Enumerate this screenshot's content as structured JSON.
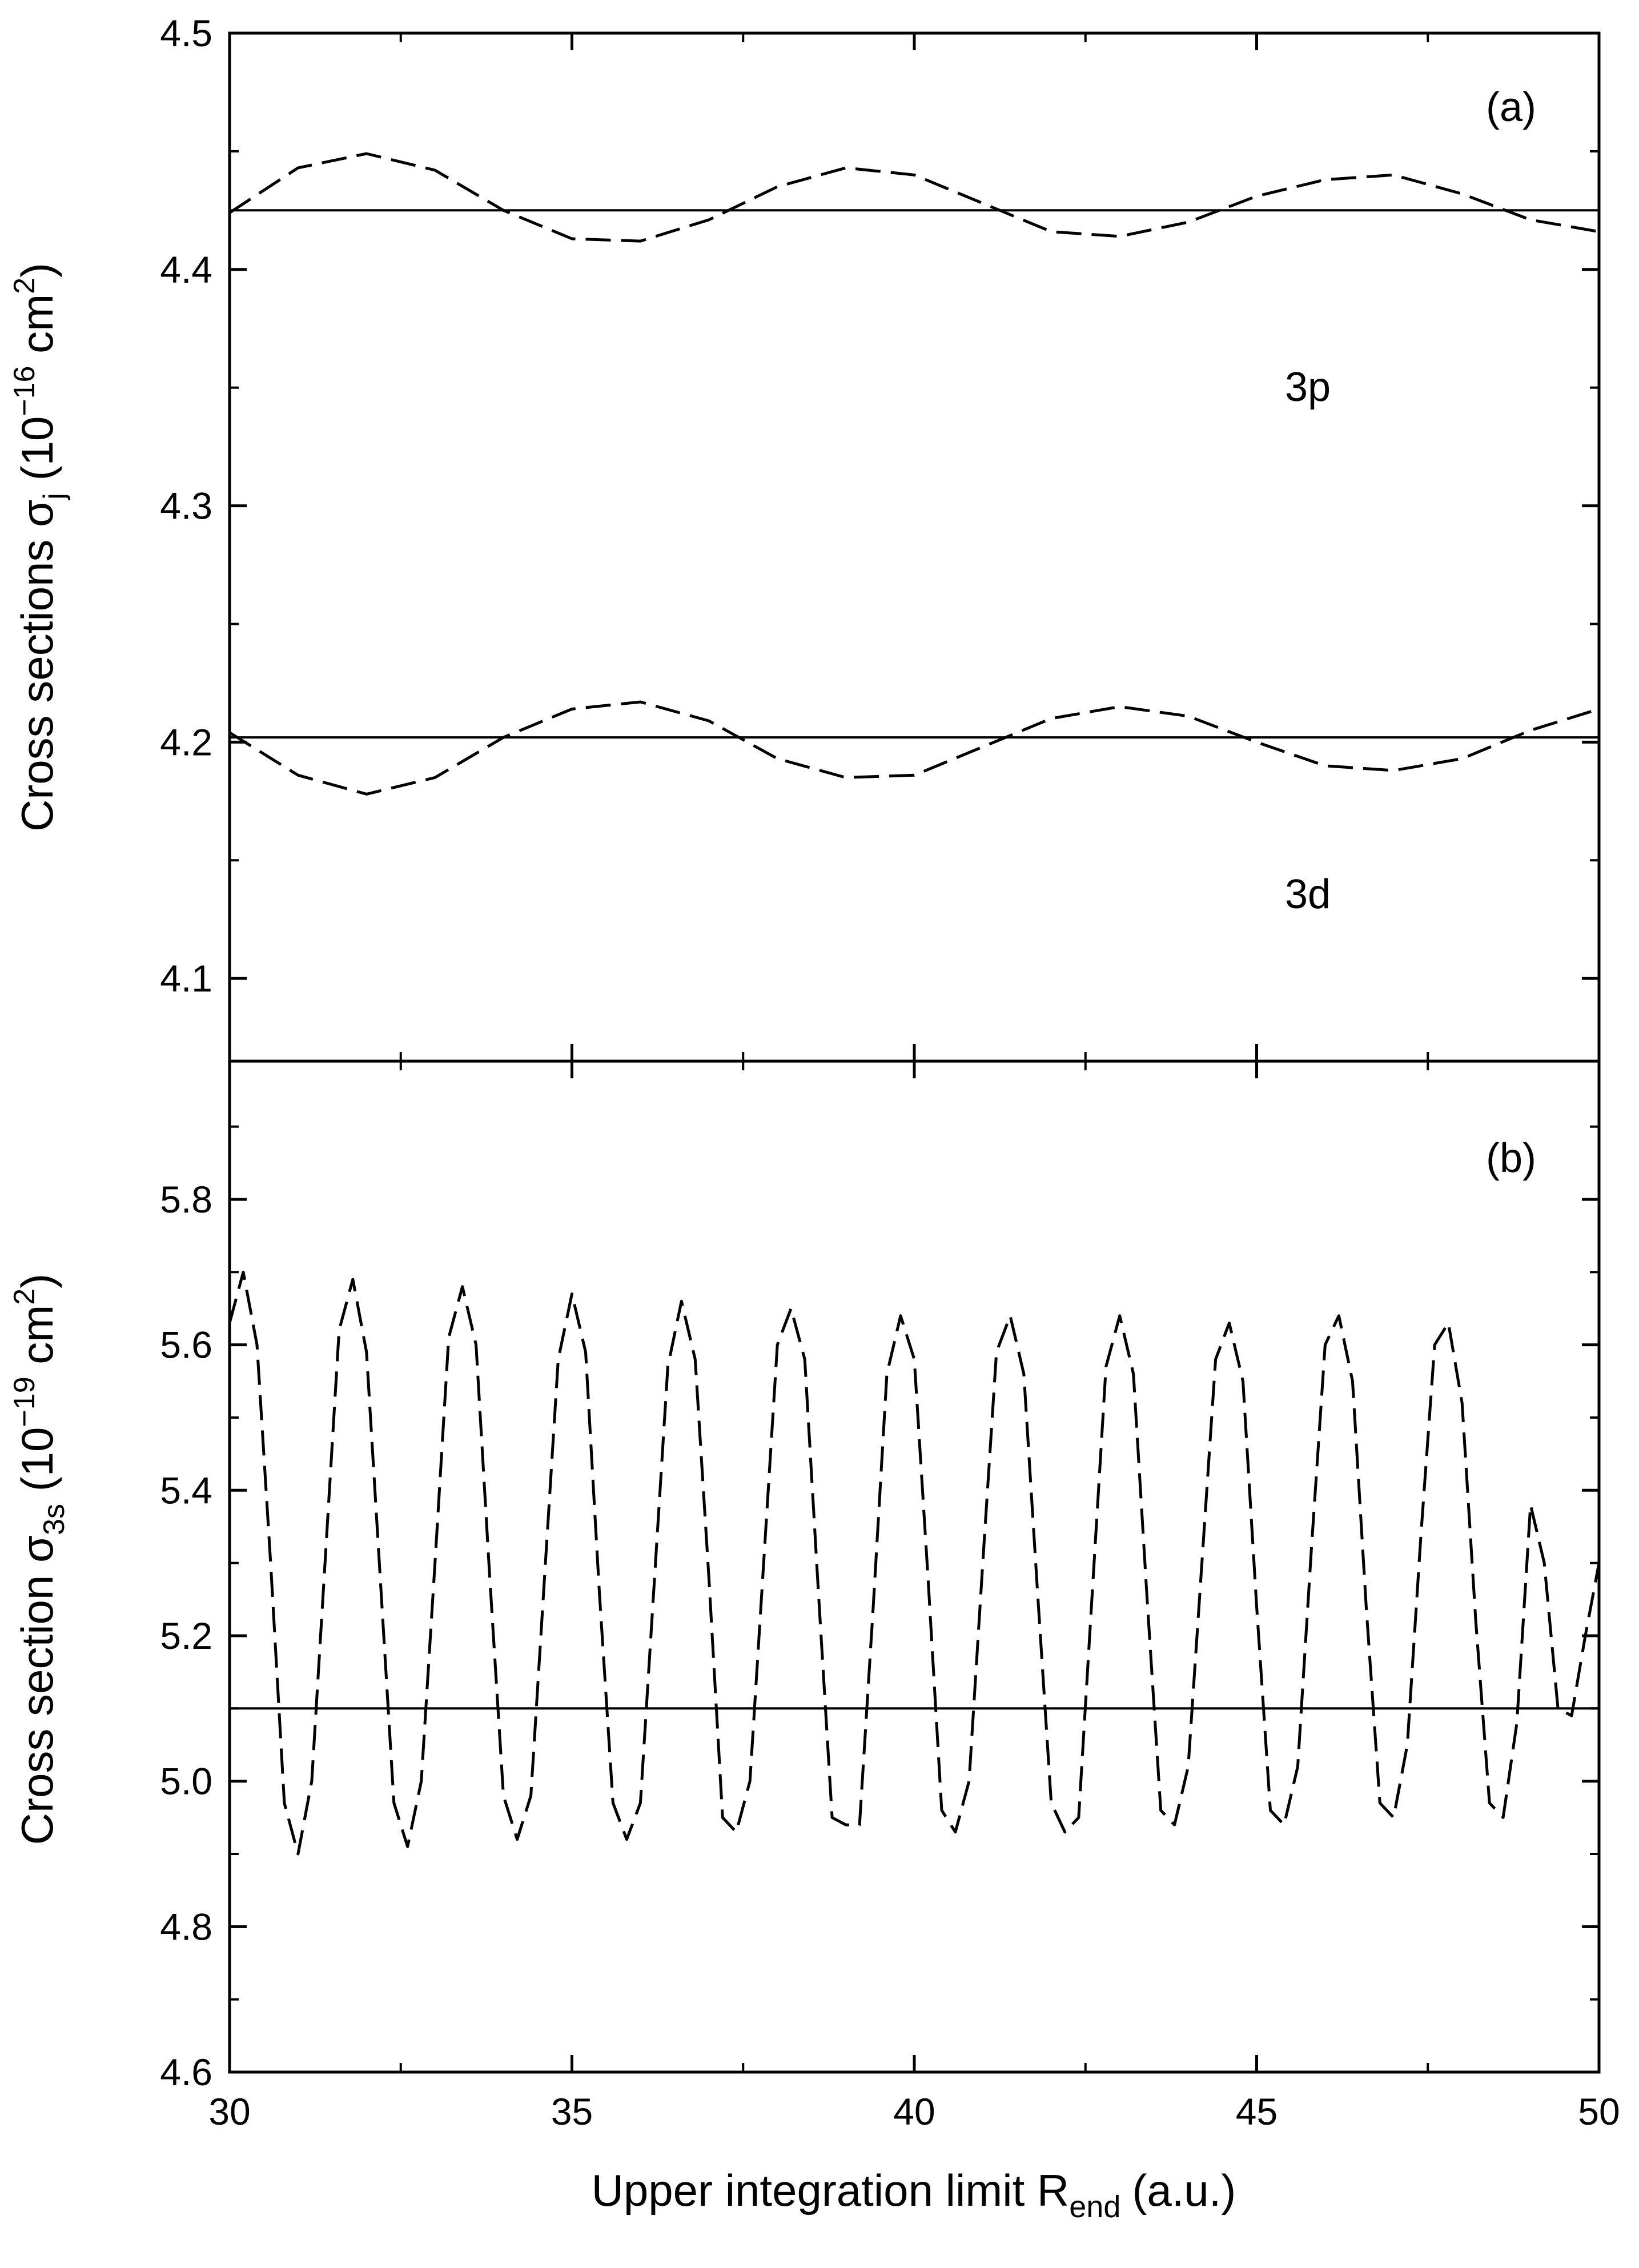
{
  "figure": {
    "xlabel": "Upper integration limit R",
    "xlabel_sub": "end",
    "xlabel_units": "(a.u.)"
  },
  "chart_data": [
    {
      "type": "line",
      "panel": "(a)",
      "ylabel": {
        "base": "Cross sections σ",
        "sub": "j",
        "units_open": " (10",
        "exp": "−16",
        "units_mid": " cm",
        "exp2": "2",
        "units_close": ")"
      },
      "xlim": [
        30,
        50
      ],
      "ylim": [
        4.065,
        4.5
      ],
      "xticks": [
        30,
        35,
        40,
        45,
        50
      ],
      "yticks": [
        4.1,
        4.2,
        4.3,
        4.4,
        4.5
      ],
      "ytick_labels": [
        "4.1",
        "4.2",
        "4.3",
        "4.4",
        "4.5"
      ],
      "labels": [
        "3p",
        "3d"
      ],
      "series": [
        {
          "style": "solid",
          "x": [
            30,
            50
          ],
          "y": [
            4.425,
            4.425
          ]
        },
        {
          "style": "dashed",
          "x": [
            30,
            31,
            32,
            33,
            34,
            35,
            36,
            37,
            38,
            39,
            40,
            41,
            42,
            43,
            44,
            45,
            46,
            47,
            48,
            49,
            50
          ],
          "y": [
            4.424,
            4.443,
            4.449,
            4.442,
            4.425,
            4.413,
            4.412,
            4.421,
            4.435,
            4.443,
            4.44,
            4.428,
            4.416,
            4.414,
            4.42,
            4.431,
            4.438,
            4.44,
            4.432,
            4.421,
            4.416
          ]
        },
        {
          "style": "solid",
          "x": [
            30,
            50
          ],
          "y": [
            4.202,
            4.202
          ]
        },
        {
          "style": "dashed",
          "x": [
            30,
            31,
            32,
            33,
            34,
            35,
            36,
            37,
            38,
            39,
            40,
            41,
            42,
            43,
            44,
            45,
            46,
            47,
            48,
            49,
            50
          ],
          "y": [
            4.204,
            4.186,
            4.178,
            4.185,
            4.202,
            4.214,
            4.217,
            4.209,
            4.193,
            4.185,
            4.186,
            4.198,
            4.21,
            4.215,
            4.211,
            4.2,
            4.19,
            4.188,
            4.193,
            4.205,
            4.214
          ]
        }
      ]
    },
    {
      "type": "line",
      "panel": "(b)",
      "ylabel": {
        "base": "Cross section σ",
        "sub": "3s",
        "units_open": " (10",
        "exp": "−19",
        "units_mid": " cm",
        "exp2": "2",
        "units_close": ")"
      },
      "xlim": [
        30,
        50
      ],
      "ylim": [
        4.6,
        5.99
      ],
      "xticks": [
        30,
        35,
        40,
        45,
        50
      ],
      "xtick_labels": [
        "30",
        "35",
        "40",
        "45",
        "50"
      ],
      "yticks": [
        4.6,
        4.8,
        5.0,
        5.2,
        5.4,
        5.6,
        5.8
      ],
      "ytick_labels": [
        "4.6",
        "4.8",
        "5.0",
        "5.2",
        "5.4",
        "5.6",
        "5.8"
      ],
      "series": [
        {
          "style": "solid",
          "x": [
            30,
            50
          ],
          "y": [
            5.1,
            5.1
          ]
        },
        {
          "style": "dashed",
          "x": [
            30,
            30.2,
            30.4,
            30.6,
            30.8,
            31.0,
            31.2,
            31.4,
            31.6,
            31.8,
            32.0,
            32.2,
            32.4,
            32.6,
            32.8,
            33.0,
            33.2,
            33.4,
            33.6,
            33.8,
            34.0,
            34.2,
            34.4,
            34.6,
            34.8,
            35.0,
            35.2,
            35.4,
            35.6,
            35.8,
            36.0,
            36.2,
            36.4,
            36.6,
            36.8,
            37.0,
            37.2,
            37.4,
            37.6,
            37.8,
            38.0,
            38.2,
            38.4,
            38.6,
            38.8,
            39.0,
            39.2,
            39.4,
            39.6,
            39.8,
            40.0,
            40.2,
            40.4,
            40.6,
            40.8,
            41.0,
            41.2,
            41.4,
            41.6,
            41.8,
            42.0,
            42.2,
            42.4,
            42.6,
            42.8,
            43.0,
            43.2,
            43.4,
            43.6,
            43.8,
            44.0,
            44.2,
            44.4,
            44.6,
            44.8,
            45.0,
            45.2,
            45.4,
            45.6,
            45.8,
            46.0,
            46.2,
            46.4,
            46.6,
            46.8,
            47.0,
            47.2,
            47.4,
            47.6,
            47.8,
            48.0,
            48.2,
            48.4,
            48.6,
            48.8,
            49.0,
            49.2,
            49.4,
            49.6,
            49.8,
            50.0
          ],
          "y": [
            5.63,
            5.7,
            5.6,
            5.3,
            4.97,
            4.9,
            5.0,
            5.31,
            5.62,
            5.69,
            5.59,
            5.28,
            4.97,
            4.91,
            5.0,
            5.3,
            5.61,
            5.68,
            5.6,
            5.28,
            4.98,
            4.92,
            4.98,
            5.28,
            5.58,
            5.67,
            5.59,
            5.26,
            4.97,
            4.92,
            4.97,
            5.27,
            5.57,
            5.66,
            5.58,
            5.28,
            4.95,
            4.93,
            5.0,
            5.3,
            5.6,
            5.65,
            5.58,
            5.26,
            4.95,
            4.94,
            4.94,
            5.24,
            5.56,
            5.64,
            5.58,
            5.28,
            4.96,
            4.93,
            5.0,
            5.3,
            5.59,
            5.64,
            5.56,
            5.26,
            4.97,
            4.93,
            4.95,
            5.26,
            5.57,
            5.64,
            5.56,
            5.25,
            4.96,
            4.94,
            5.02,
            5.3,
            5.58,
            5.63,
            5.55,
            5.24,
            4.96,
            4.94,
            5.02,
            5.32,
            5.6,
            5.64,
            5.55,
            5.24,
            4.97,
            4.95,
            5.05,
            5.34,
            5.6,
            5.63,
            5.52,
            5.22,
            4.97,
            4.95,
            5.08,
            5.38,
            5.3,
            5.1,
            5.09,
            5.2,
            5.3
          ]
        }
      ]
    }
  ]
}
